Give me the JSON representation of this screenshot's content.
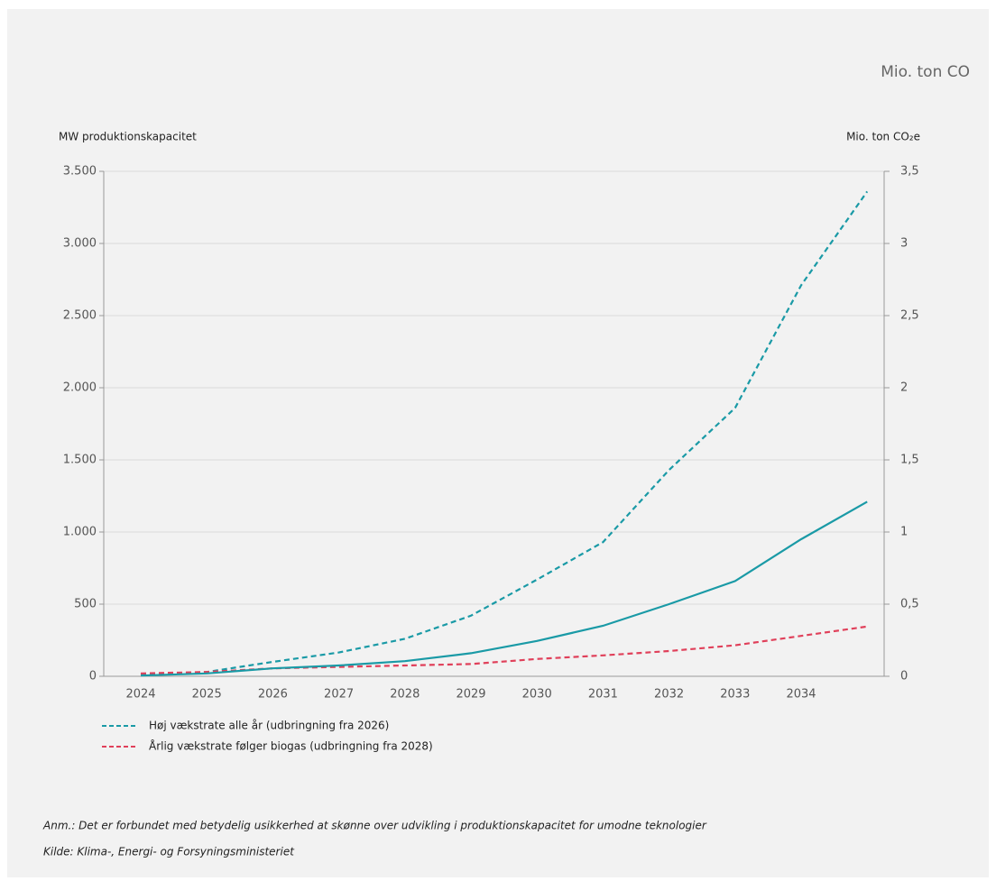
{
  "chart_data": {
    "type": "line",
    "top_label": "Mio. ton CO",
    "y_label": "MW produktionskapacitet",
    "y2_label": "Mio. ton CO₂e",
    "categories": [
      "2024",
      "2025",
      "2026",
      "2027",
      "2028",
      "2029",
      "2030",
      "2031",
      "2032",
      "2033",
      "2034",
      null
    ],
    "series": [
      {
        "name": "Høj vækstrate alle år (udbringning fra 2026)",
        "color": "#1a9aa6",
        "dash": true,
        "values": [
          10,
          30,
          100,
          165,
          260,
          420,
          670,
          930,
          1430,
          1860,
          2710,
          3360
        ]
      },
      {
        "name": "Årlig vækstrate følger biogas (udbringning fra 2028)",
        "color": "#e0405a",
        "dash": true,
        "values": [
          20,
          30,
          55,
          65,
          75,
          85,
          120,
          145,
          175,
          215,
          280,
          345
        ]
      },
      {
        "color": "#1a9aa6",
        "dash": false,
        "values": [
          5,
          20,
          55,
          75,
          105,
          160,
          245,
          350,
          500,
          660,
          950,
          1210
        ]
      }
    ],
    "ylim": [
      0,
      3500
    ],
    "yticks": [
      0,
      500,
      {
        "value": 1000,
        "label": "1.000"
      },
      {
        "value": 1500,
        "label": "1.500"
      },
      {
        "value": 2000,
        "label": "2.000"
      },
      {
        "value": 2500,
        "label": "2.500"
      },
      {
        "value": 3000,
        "label": "3.000"
      },
      {
        "value": 3500,
        "label": "3.500"
      }
    ],
    "y2lim": [
      0,
      3.5
    ],
    "y2ticks": [
      0,
      {
        "value": 0.5,
        "label": "0,5"
      },
      1,
      {
        "value": 1.5,
        "label": "1,5"
      },
      2,
      {
        "value": 2.5,
        "label": "2,5"
      },
      3,
      {
        "value": 3.5,
        "label": "3,5"
      }
    ],
    "grid": true,
    "notes": [
      "Anm.: Det er forbundet med betydelig usikkerhed at skønne over udvikling i produktionskapacitet for umodne teknologier",
      "Kilde: Klima-, Energi- og Forsyningsministeriet"
    ]
  }
}
